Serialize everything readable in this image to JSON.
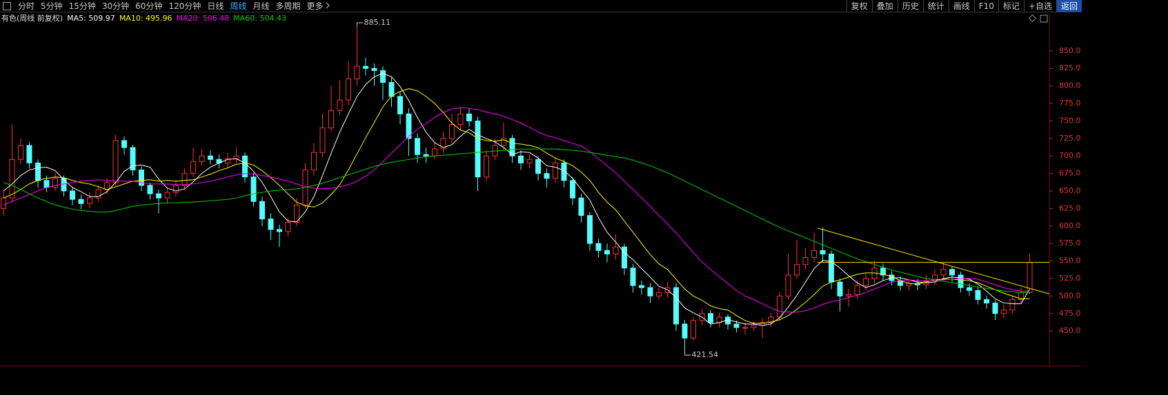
{
  "toolbar": {
    "periods": [
      "分时",
      "5分钟",
      "15分钟",
      "30分钟",
      "60分钟",
      "120分钟",
      "日线",
      "周线",
      "月线",
      "多周期",
      "更多"
    ],
    "active_period_index": 7,
    "buttons": [
      "复权",
      "叠加",
      "历史",
      "统计",
      "画线",
      "F10",
      "标记",
      "+自选",
      "返回"
    ],
    "active_button_index": 8
  },
  "chart_data": {
    "type": "candlestick",
    "title": "有色(周线 前复权)",
    "up_color": "#ff3232",
    "down_color": "#54fcfc",
    "open": [
      625,
      640,
      695,
      715,
      690,
      665,
      655,
      668,
      650,
      638,
      632,
      640,
      652,
      662,
      722,
      712,
      680,
      658,
      646,
      640,
      648,
      658,
      675,
      692,
      700,
      695,
      690,
      696,
      700,
      670,
      635,
      610,
      595,
      592,
      605,
      630,
      680,
      705,
      740,
      765,
      780,
      810,
      828,
      825,
      822,
      805,
      785,
      760,
      725,
      702,
      700,
      710,
      725,
      745,
      760,
      750,
      670,
      700,
      715,
      725,
      700,
      690,
      695,
      675,
      668,
      690,
      665,
      640,
      615,
      575,
      565,
      560,
      570,
      540,
      515,
      512,
      500,
      505,
      512,
      460,
      440,
      465,
      475,
      462,
      470,
      460,
      455,
      455,
      458,
      462,
      470,
      500,
      530,
      545,
      555,
      565,
      560,
      520,
      500,
      502,
      515,
      525,
      540,
      530,
      522,
      515,
      518,
      516,
      522,
      530,
      538,
      530,
      512,
      508,
      495,
      490,
      475,
      480,
      495,
      505
    ],
    "high": [
      650,
      745,
      725,
      720,
      695,
      672,
      676,
      672,
      656,
      645,
      648,
      658,
      668,
      730,
      728,
      716,
      685,
      662,
      652,
      655,
      664,
      682,
      712,
      710,
      708,
      702,
      704,
      712,
      705,
      676,
      642,
      618,
      602,
      612,
      640,
      690,
      718,
      760,
      800,
      808,
      835,
      885.11,
      840,
      832,
      828,
      812,
      792,
      768,
      732,
      712,
      720,
      735,
      760,
      770,
      768,
      756,
      708,
      725,
      748,
      730,
      708,
      702,
      700,
      682,
      698,
      695,
      670,
      646,
      620,
      582,
      575,
      588,
      575,
      546,
      522,
      518,
      512,
      520,
      518,
      466,
      470,
      482,
      480,
      476,
      474,
      465,
      462,
      464,
      468,
      476,
      506,
      560,
      580,
      568,
      590,
      598,
      565,
      525,
      510,
      522,
      532,
      550,
      546,
      536,
      528,
      524,
      524,
      530,
      538,
      548,
      542,
      535,
      518,
      512,
      500,
      494,
      488,
      500,
      512,
      560
    ],
    "low": [
      615,
      635,
      688,
      682,
      655,
      648,
      650,
      642,
      630,
      624,
      625,
      635,
      645,
      658,
      702,
      672,
      650,
      638,
      618,
      632,
      642,
      652,
      670,
      686,
      688,
      682,
      684,
      690,
      662,
      628,
      600,
      580,
      570,
      585,
      600,
      625,
      672,
      698,
      735,
      758,
      772,
      800,
      815,
      800,
      780,
      770,
      745,
      700,
      690,
      690,
      695,
      704,
      718,
      738,
      742,
      650,
      664,
      694,
      708,
      690,
      680,
      682,
      665,
      655,
      662,
      655,
      630,
      605,
      565,
      555,
      548,
      552,
      530,
      505,
      502,
      490,
      495,
      498,
      450,
      421.54,
      436,
      458,
      455,
      455,
      452,
      448,
      445,
      450,
      440,
      456,
      465,
      495,
      525,
      538,
      548,
      548,
      510,
      478,
      485,
      496,
      508,
      518,
      522,
      515,
      508,
      508,
      508,
      510,
      515,
      524,
      520,
      505,
      500,
      488,
      482,
      466,
      468,
      475,
      490,
      503
    ],
    "close": [
      640,
      695,
      715,
      690,
      665,
      655,
      668,
      650,
      638,
      632,
      640,
      652,
      662,
      722,
      712,
      680,
      658,
      646,
      640,
      648,
      658,
      675,
      692,
      700,
      695,
      690,
      696,
      700,
      670,
      635,
      610,
      595,
      592,
      605,
      630,
      680,
      705,
      740,
      765,
      780,
      810,
      828,
      825,
      822,
      805,
      785,
      760,
      725,
      702,
      700,
      710,
      725,
      745,
      760,
      750,
      670,
      700,
      715,
      725,
      700,
      690,
      695,
      675,
      668,
      690,
      665,
      640,
      615,
      575,
      565,
      560,
      570,
      540,
      515,
      512,
      500,
      505,
      512,
      460,
      440,
      465,
      475,
      462,
      470,
      460,
      455,
      455,
      458,
      462,
      470,
      500,
      530,
      545,
      555,
      565,
      560,
      520,
      500,
      502,
      515,
      525,
      540,
      530,
      522,
      515,
      518,
      516,
      522,
      530,
      538,
      530,
      512,
      508,
      495,
      490,
      475,
      480,
      495,
      505,
      548
    ],
    "series": [
      {
        "name": "MA5: 509.97",
        "color": "#ffffff",
        "values": [
          650,
          660,
          672,
          680,
          683,
          684,
          679,
          666,
          655,
          649,
          642,
          642,
          649,
          662,
          678,
          686,
          687,
          684,
          667,
          654,
          650,
          653,
          663,
          675,
          684,
          690,
          695,
          696,
          690,
          678,
          662,
          642,
          620,
          607,
          606,
          620,
          642,
          672,
          704,
          734,
          760,
          785,
          802,
          813,
          818,
          813,
          799,
          779,
          755,
          734,
          719,
          712,
          716,
          728,
          738,
          730,
          725,
          720,
          712,
          702,
          706,
          705,
          697,
          686,
          684,
          679,
          668,
          652,
          637,
          612,
          591,
          577,
          562,
          552,
          539,
          527,
          514,
          509,
          498,
          483,
          476,
          470,
          460,
          462,
          466,
          463,
          460,
          460,
          458,
          460,
          469,
          484,
          501,
          520,
          539,
          551,
          549,
          540,
          529,
          519,
          512,
          516,
          522,
          526,
          526,
          523,
          520,
          519,
          520,
          525,
          527,
          526,
          524,
          517,
          507,
          496,
          490,
          489,
          489,
          509.97
        ]
      },
      {
        "name": "MA10: 495.96",
        "color": "#ffff00",
        "values": [
          640,
          645,
          652,
          660,
          665,
          668,
          670,
          669,
          665,
          662,
          660,
          656,
          652,
          656,
          660,
          664,
          665,
          666,
          664,
          665,
          664,
          665,
          666,
          670,
          674,
          679,
          683,
          688,
          690,
          687,
          679,
          669,
          658,
          646,
          634,
          629,
          627,
          633,
          645,
          659,
          680,
          703,
          726,
          748,
          770,
          786,
          792,
          796,
          793,
          785,
          775,
          762,
          747,
          737,
          733,
          725,
          722,
          721,
          723,
          718,
          717,
          715,
          712,
          704,
          697,
          692,
          686,
          677,
          665,
          648,
          634,
          623,
          607,
          591,
          575,
          559,
          546,
          538,
          524,
          510,
          500,
          494,
          486,
          482,
          480,
          472,
          465,
          461,
          461,
          463,
          466,
          472,
          481,
          491,
          502,
          514,
          520,
          523,
          527,
          531,
          533,
          533,
          531,
          528,
          522,
          518,
          517,
          520,
          523,
          524,
          524,
          523,
          522,
          519,
          514,
          509,
          504,
          500,
          496,
          495.96
        ]
      },
      {
        "name": "MA20: 506.48",
        "color": "#ff00ff",
        "values": [
          630,
          635,
          640,
          645,
          650,
          655,
          658,
          660,
          662,
          664,
          665,
          666,
          665,
          664,
          664,
          664,
          662,
          660,
          660,
          660,
          659,
          659,
          660,
          662,
          664,
          667,
          670,
          673,
          675,
          674,
          672,
          670,
          667,
          664,
          660,
          656,
          654,
          653,
          654,
          656,
          659,
          664,
          671,
          680,
          692,
          704,
          716,
          728,
          738,
          746,
          755,
          762,
          767,
          769,
          768,
          766,
          763,
          760,
          757,
          752,
          747,
          741,
          734,
          729,
          726,
          722,
          718,
          714,
          706,
          696,
          686,
          676,
          664,
          652,
          640,
          628,
          615,
          603,
          590,
          576,
          562,
          549,
          538,
          528,
          518,
          508,
          500,
          495,
          489,
          483,
          478,
          477,
          477,
          479,
          483,
          488,
          492,
          494,
          498,
          501,
          505,
          510,
          515,
          520,
          522,
          523,
          522,
          521,
          522,
          523,
          524,
          525,
          525,
          524,
          520,
          516,
          512,
          509,
          507,
          506.48
        ]
      },
      {
        "name": "MA60: 504.43",
        "color": "#00d000",
        "values": [
          662,
          658,
          652,
          646,
          640,
          635,
          630,
          627,
          624,
          622,
          621,
          620,
          620,
          622,
          625,
          628,
          630,
          631,
          632,
          633,
          633,
          634,
          634,
          635,
          636,
          637,
          638,
          640,
          643,
          646,
          648,
          650,
          651,
          652,
          653,
          655,
          658,
          661,
          665,
          669,
          673,
          677,
          681,
          685,
          688,
          691,
          693,
          695,
          697,
          699,
          700,
          701,
          702,
          703,
          704,
          705,
          706,
          707,
          708,
          709,
          710,
          710,
          710,
          710,
          710,
          709,
          708,
          707,
          705,
          703,
          701,
          699,
          697,
          694,
          690,
          686,
          681,
          676,
          670,
          664,
          658,
          652,
          646,
          640,
          634,
          628,
          622,
          616,
          610,
          604,
          598,
          593,
          588,
          583,
          578,
          573,
          568,
          563,
          558,
          553,
          549,
          545,
          541,
          537,
          534,
          531,
          528,
          525,
          523,
          521,
          519,
          517,
          515,
          513,
          511,
          509,
          507,
          506,
          505,
          504.43
        ]
      }
    ],
    "ylim": [
      400,
      903
    ],
    "yticks": [
      {
        "value": 450,
        "label": "450.0"
      },
      {
        "value": 475,
        "label": "475.0"
      },
      {
        "value": 500,
        "label": "500.0"
      },
      {
        "value": 525,
        "label": "525.0"
      },
      {
        "value": 550,
        "label": "550.0"
      },
      {
        "value": 575,
        "label": "575.0"
      },
      {
        "value": 600,
        "label": "600.0"
      },
      {
        "value": 625,
        "label": "625.0"
      },
      {
        "value": 650,
        "label": "650.0"
      },
      {
        "value": 675,
        "label": "675.0"
      },
      {
        "value": 700,
        "label": "700.0"
      },
      {
        "value": 725,
        "label": "725.0"
      },
      {
        "value": 750,
        "label": "750.0"
      },
      {
        "value": 775,
        "label": "775.0"
      },
      {
        "value": 800,
        "label": "800.0"
      },
      {
        "value": 825,
        "label": "825.0"
      },
      {
        "value": 850,
        "label": "850.0"
      }
    ],
    "hline": 548,
    "hline_color": "#ffe000",
    "trendline": [
      597,
      503
    ],
    "trendline_color": "#ffe000"
  }
}
